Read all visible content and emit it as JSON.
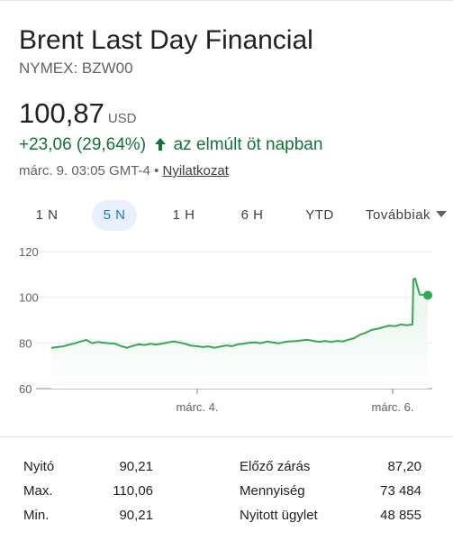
{
  "header": {
    "title": "Brent Last Day Financial",
    "ticker": "NYMEX: BZW00"
  },
  "quote": {
    "price": "100,87",
    "currency": "USD",
    "change": "+23,06 (29,64%)",
    "change_suffix": "az elmúlt öt napban",
    "timestamp": "márc. 9. 03:05 GMT-4",
    "separator": "•",
    "disclaimer": "Nyilatkozat"
  },
  "colors": {
    "positive": "#137333",
    "line": "#34a853",
    "area_top": "#e6f4ea",
    "active_tab_bg": "#e8f0fe",
    "active_tab_text": "#1a73e8"
  },
  "tabs": [
    {
      "label": "1 N"
    },
    {
      "label": "5 N",
      "active": true
    },
    {
      "label": "1 H"
    },
    {
      "label": "6 H"
    },
    {
      "label": "YTD"
    }
  ],
  "more_label": "Továbbiak",
  "chart_data": {
    "type": "area",
    "x_ticks": [
      "márc. 4.",
      "márc. 6."
    ],
    "y_ticks": [
      "120",
      "100",
      "80",
      "60"
    ],
    "ylim": [
      60,
      120
    ],
    "grid": true,
    "last_value": 100.87,
    "values": [
      77.8,
      78.2,
      78.5,
      79.2,
      79.8,
      80.6,
      81.3,
      79.9,
      80.4,
      80.1,
      79.8,
      79.6,
      78.6,
      77.9,
      78.7,
      79.4,
      79.1,
      79.6,
      79.3,
      79.7,
      80.2,
      80.7,
      80.2,
      79.6,
      78.8,
      78.6,
      78.2,
      78.5,
      77.9,
      78.4,
      78.9,
      78.6,
      79.4,
      79.7,
      80.1,
      80.3,
      79.9,
      80.6,
      80.2,
      79.8,
      80.4,
      80.7,
      80.8,
      81.1,
      81.4,
      80.9,
      80.5,
      80.9,
      80.4,
      80.9,
      80.7,
      81.4,
      82.1,
      83.6,
      84.5,
      85.7,
      86.2,
      86.9,
      87.6,
      87.3,
      88.1,
      87.7,
      88.1,
      107.8,
      108.2,
      101.2,
      100.87
    ],
    "x_positions_note": ""
  },
  "stats": {
    "left": [
      {
        "label": "Nyitó",
        "value": "90,21"
      },
      {
        "label": "Max.",
        "value": "110,06"
      },
      {
        "label": "Min.",
        "value": "90,21"
      }
    ],
    "right": [
      {
        "label": "Előző zárás",
        "value": "87,20"
      },
      {
        "label": "Mennyiség",
        "value": "73 484"
      },
      {
        "label": "Nyitott ügylet",
        "value": "48 855"
      }
    ]
  }
}
